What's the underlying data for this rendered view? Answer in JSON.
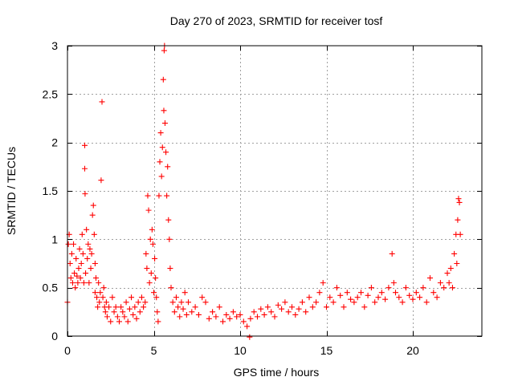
{
  "chart_data": {
    "type": "scatter",
    "title": "Day 270 of 2023, SRMTID for receiver tosf",
    "xlabel": "GPS time / hours",
    "ylabel": "SRMTID / TECUs",
    "xlim": [
      0,
      24
    ],
    "ylim": [
      0,
      3
    ],
    "xticks": [
      0,
      5,
      10,
      15,
      20
    ],
    "xtick_labels": [
      "0",
      "5",
      "10",
      "15",
      "20"
    ],
    "yticks": [
      0,
      0.5,
      1,
      1.5,
      2,
      2.5,
      3
    ],
    "ytick_labels": [
      "0",
      "0.5",
      "1",
      "1.5",
      "2",
      "2.5",
      "3"
    ],
    "grid": true,
    "marker": "+",
    "series": [
      {
        "name": "SRMTID",
        "color": "#ff0000",
        "x": [
          0.0,
          0.05,
          0.1,
          0.15,
          0.2,
          0.25,
          0.3,
          0.35,
          0.4,
          0.45,
          0.5,
          0.55,
          0.6,
          0.65,
          0.7,
          0.75,
          0.8,
          0.85,
          0.9,
          0.95,
          1.0,
          1.0,
          1.02,
          1.05,
          1.1,
          1.15,
          1.2,
          1.25,
          1.3,
          1.35,
          1.4,
          1.45,
          1.5,
          1.55,
          1.6,
          1.6,
          1.65,
          1.7,
          1.75,
          1.8,
          1.85,
          1.9,
          1.95,
          2.0,
          2.05,
          2.1,
          2.15,
          2.2,
          2.25,
          2.3,
          2.4,
          2.5,
          2.6,
          2.7,
          2.8,
          2.9,
          3.0,
          3.1,
          3.2,
          3.3,
          3.4,
          3.5,
          3.6,
          3.7,
          3.8,
          3.9,
          4.0,
          4.1,
          4.2,
          4.3,
          4.4,
          4.5,
          4.55,
          4.6,
          4.65,
          4.7,
          4.75,
          4.8,
          4.85,
          4.9,
          4.95,
          5.0,
          5.05,
          5.1,
          5.15,
          5.2,
          5.25,
          5.3,
          5.35,
          5.4,
          5.45,
          5.5,
          5.55,
          5.58,
          5.6,
          5.62,
          5.65,
          5.7,
          5.75,
          5.8,
          5.85,
          5.9,
          5.95,
          6.0,
          6.1,
          6.2,
          6.3,
          6.4,
          6.5,
          6.6,
          6.7,
          6.8,
          6.9,
          7.0,
          7.2,
          7.4,
          7.6,
          7.8,
          8.0,
          8.2,
          8.4,
          8.6,
          8.8,
          9.0,
          9.2,
          9.4,
          9.6,
          9.8,
          10.0,
          10.2,
          10.4,
          10.55,
          10.6,
          10.8,
          11.0,
          11.2,
          11.4,
          11.6,
          11.8,
          12.0,
          12.2,
          12.4,
          12.6,
          12.8,
          13.0,
          13.2,
          13.4,
          13.6,
          13.8,
          14.0,
          14.2,
          14.4,
          14.6,
          14.8,
          15.0,
          15.2,
          15.4,
          15.6,
          15.8,
          16.0,
          16.2,
          16.4,
          16.6,
          16.8,
          17.0,
          17.2,
          17.4,
          17.6,
          17.8,
          18.0,
          18.2,
          18.4,
          18.6,
          18.8,
          18.9,
          19.0,
          19.2,
          19.4,
          19.6,
          19.8,
          20.0,
          20.2,
          20.4,
          20.6,
          20.8,
          21.0,
          21.2,
          21.4,
          21.6,
          21.8,
          22.0,
          22.1,
          22.2,
          22.3,
          22.4,
          22.5,
          22.55,
          22.6,
          22.65,
          22.7,
          22.75
        ],
        "y": [
          0.35,
          0.95,
          1.05,
          0.75,
          0.6,
          0.85,
          0.55,
          0.95,
          0.65,
          0.5,
          0.8,
          0.62,
          0.55,
          0.7,
          0.9,
          0.6,
          0.75,
          1.05,
          0.85,
          0.55,
          1.97,
          1.73,
          1.47,
          0.65,
          1.1,
          0.8,
          0.95,
          0.55,
          0.9,
          0.7,
          0.85,
          1.25,
          1.35,
          1.05,
          0.75,
          0.45,
          0.6,
          0.4,
          0.3,
          0.55,
          0.35,
          0.45,
          1.61,
          2.42,
          0.4,
          0.5,
          0.3,
          0.25,
          0.35,
          0.2,
          0.3,
          0.15,
          0.4,
          0.25,
          0.3,
          0.2,
          0.15,
          0.3,
          0.25,
          0.2,
          0.35,
          0.15,
          0.28,
          0.4,
          0.22,
          0.3,
          0.18,
          0.35,
          0.25,
          0.4,
          0.3,
          0.35,
          0.85,
          0.7,
          1.45,
          1.3,
          0.55,
          1.0,
          0.65,
          1.1,
          0.95,
          0.45,
          0.8,
          0.6,
          0.4,
          0.25,
          0.15,
          1.45,
          1.8,
          2.1,
          1.65,
          1.95,
          2.65,
          2.33,
          2.95,
          3.0,
          2.2,
          1.9,
          1.45,
          1.75,
          1.2,
          1.0,
          0.7,
          0.5,
          0.35,
          0.25,
          0.4,
          0.3,
          0.2,
          0.35,
          0.28,
          0.45,
          0.22,
          0.35,
          0.25,
          0.3,
          0.22,
          0.4,
          0.35,
          0.18,
          0.25,
          0.2,
          0.3,
          0.15,
          0.22,
          0.18,
          0.25,
          0.2,
          0.22,
          0.15,
          0.1,
          -0.01,
          0.18,
          0.25,
          0.2,
          0.28,
          0.22,
          0.3,
          0.25,
          0.2,
          0.32,
          0.28,
          0.35,
          0.25,
          0.3,
          0.22,
          0.28,
          0.35,
          0.25,
          0.4,
          0.3,
          0.35,
          0.45,
          0.55,
          0.3,
          0.4,
          0.35,
          0.5,
          0.42,
          0.3,
          0.45,
          0.38,
          0.35,
          0.4,
          0.45,
          0.3,
          0.42,
          0.5,
          0.35,
          0.4,
          0.45,
          0.38,
          0.5,
          0.85,
          0.55,
          0.45,
          0.4,
          0.35,
          0.5,
          0.42,
          0.38,
          0.45,
          0.4,
          0.5,
          0.35,
          0.6,
          0.45,
          0.4,
          0.55,
          0.5,
          0.65,
          0.55,
          0.7,
          0.5,
          0.85,
          1.05,
          0.75,
          1.2,
          1.42,
          1.38,
          1.05
        ]
      }
    ]
  }
}
